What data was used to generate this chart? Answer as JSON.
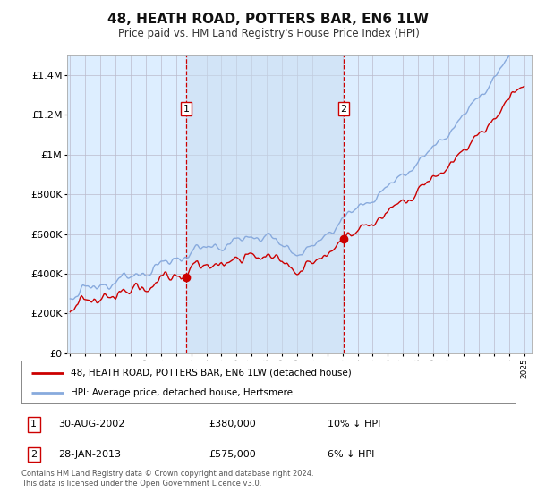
{
  "title": "48, HEATH ROAD, POTTERS BAR, EN6 1LW",
  "subtitle": "Price paid vs. HM Land Registry's House Price Index (HPI)",
  "legend_line1": "48, HEATH ROAD, POTTERS BAR, EN6 1LW (detached house)",
  "legend_line2": "HPI: Average price, detached house, Hertsmere",
  "sale1_date": "30-AUG-2002",
  "sale1_price": "£380,000",
  "sale1_hpi": "10% ↓ HPI",
  "sale2_date": "28-JAN-2013",
  "sale2_price": "£575,000",
  "sale2_hpi": "6% ↓ HPI",
  "footer": "Contains HM Land Registry data © Crown copyright and database right 2024.\nThis data is licensed under the Open Government Licence v3.0.",
  "sale1_year": 2002.66,
  "sale1_value": 380000,
  "sale2_year": 2013.08,
  "sale2_value": 575000,
  "color_red": "#cc0000",
  "color_blue": "#88aadd",
  "color_vline": "#cc0000",
  "background_plot": "#ddeeff",
  "background_fig": "#ffffff",
  "ylim_max": 1500000,
  "xlim_start": 1994.8,
  "xlim_end": 2025.5
}
